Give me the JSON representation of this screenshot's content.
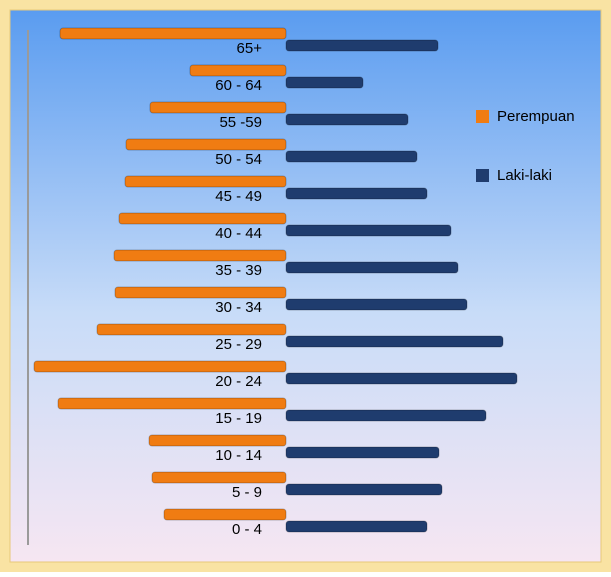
{
  "chart_data": {
    "type": "pyramid",
    "categories": [
      "65+",
      "60 - 64",
      "55 -59",
      "50 - 54",
      "45 - 49",
      "40 - 44",
      "35 - 39",
      "30 - 34",
      "25 - 29",
      "20 - 24",
      "15 - 19",
      "10 - 14",
      "5 - 9",
      "0 - 4"
    ],
    "series": [
      {
        "name": "Perempuan",
        "color": "#f07c12",
        "side": "left",
        "values": [
          226,
          96,
          136,
          160,
          161,
          167,
          172,
          171,
          189,
          252,
          228,
          137,
          134,
          122
        ]
      },
      {
        "name": "Laki-laki",
        "color": "#1f3c6e",
        "side": "right",
        "values": [
          152,
          77,
          122,
          131,
          141,
          165,
          172,
          181,
          217,
          231,
          200,
          153,
          156,
          141
        ]
      }
    ]
  }
}
